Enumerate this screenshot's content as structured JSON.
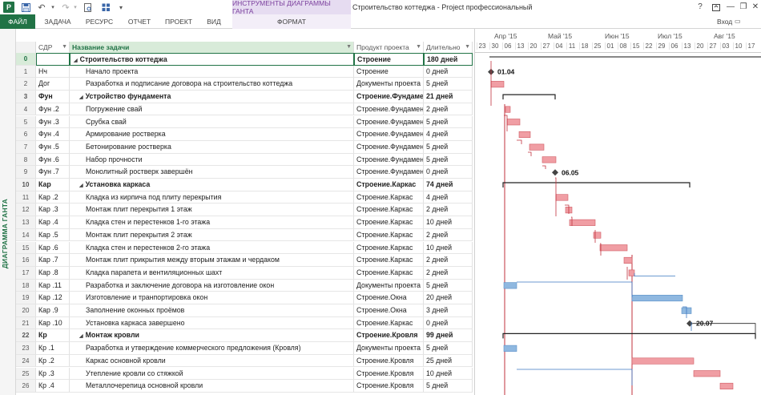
{
  "titlebar": {
    "app_icon": "P",
    "qa_icons": [
      "save-icon",
      "undo-icon",
      "redo-icon",
      "print-preview-icon",
      "customize-icon",
      "touch-mode-icon"
    ],
    "contextual_title": "ИНСТРУМЕНТЫ ДИАГРАММЫ ГАНТА",
    "document_title": "Строительство коттеджа - Project профессиональный",
    "help": "?",
    "minimize": "—",
    "restore": "❐",
    "close": "✕"
  },
  "ribbon": {
    "tabs": [
      "ФАЙЛ",
      "ЗАДАЧА",
      "РЕСУРС",
      "ОТЧЕТ",
      "ПРОЕКТ",
      "ВИД"
    ],
    "context_tab": "ФОРМАТ",
    "signin": "Вход"
  },
  "sidebar": {
    "view_label": "ДИАГРАММА ГАНТА"
  },
  "grid": {
    "headers": {
      "sdr": "СДР",
      "name": "Название задачи",
      "product": "Продукт проекта",
      "duration": "Длительно"
    },
    "rows": [
      {
        "id": "0",
        "sdr": "",
        "name": "Строительство коттеджа",
        "product": "Строение",
        "duration": "180 дней",
        "level": 0,
        "summary": true
      },
      {
        "id": "1",
        "sdr": "Нч",
        "name": "Начало проекта",
        "product": "Строение",
        "duration": "0 дней",
        "level": 2,
        "summary": false
      },
      {
        "id": "2",
        "sdr": "Дог",
        "name": "Разработка и подписание договора на строительство коттеджа",
        "product": "Документы проекта",
        "duration": "5 дней",
        "level": 2,
        "summary": false
      },
      {
        "id": "3",
        "sdr": "Фун",
        "name": "Устройство фундамента",
        "product": "Строение.Фундамент",
        "duration": "21 дней",
        "level": 1,
        "summary": true
      },
      {
        "id": "4",
        "sdr": "Фун .2",
        "name": "Погружение свай",
        "product": "Строение.Фундамент",
        "duration": "2 дней",
        "level": 2,
        "summary": false
      },
      {
        "id": "5",
        "sdr": "Фун .3",
        "name": "Срубка свай",
        "product": "Строение.Фундамент",
        "duration": "5 дней",
        "level": 2,
        "summary": false
      },
      {
        "id": "6",
        "sdr": "Фун .4",
        "name": "Армирование ростверка",
        "product": "Строение.Фундамент",
        "duration": "4 дней",
        "level": 2,
        "summary": false
      },
      {
        "id": "7",
        "sdr": "Фун .5",
        "name": "Бетонирование ростверка",
        "product": "Строение.Фундамент",
        "duration": "5 дней",
        "level": 2,
        "summary": false
      },
      {
        "id": "8",
        "sdr": "Фун .6",
        "name": "Набор прочности",
        "product": "Строение.Фундамент",
        "duration": "5 дней",
        "level": 2,
        "summary": false
      },
      {
        "id": "9",
        "sdr": "Фун .7",
        "name": "Монолитный ростверк завершён",
        "product": "Строение.Фундамент",
        "duration": "0 дней",
        "level": 2,
        "summary": false
      },
      {
        "id": "10",
        "sdr": "Кар",
        "name": "Установка каркаса",
        "product": "Строение.Каркас",
        "duration": "74 дней",
        "level": 1,
        "summary": true
      },
      {
        "id": "11",
        "sdr": "Кар .2",
        "name": "Кладка из кирпича под плиту перекрытия",
        "product": "Строение.Каркас",
        "duration": "4 дней",
        "level": 2,
        "summary": false
      },
      {
        "id": "12",
        "sdr": "Кар .3",
        "name": "Монтаж плит перекрытия 1 этаж",
        "product": "Строение.Каркас",
        "duration": "2 дней",
        "level": 2,
        "summary": false
      },
      {
        "id": "13",
        "sdr": "Кар .4",
        "name": "Кладка стен и перестенков 1-го этажа",
        "product": "Строение.Каркас",
        "duration": "10 дней",
        "level": 2,
        "summary": false
      },
      {
        "id": "14",
        "sdr": "Кар .5",
        "name": "Монтаж плит перекрытия 2 этаж",
        "product": "Строение.Каркас",
        "duration": "2 дней",
        "level": 2,
        "summary": false
      },
      {
        "id": "15",
        "sdr": "Кар .6",
        "name": "Кладка стен и перестенков 2-го этажа",
        "product": "Строение.Каркас",
        "duration": "10 дней",
        "level": 2,
        "summary": false
      },
      {
        "id": "16",
        "sdr": "Кар .7",
        "name": "Монтаж плит прикрытия между вторым этажам и чердаком",
        "product": "Строение.Каркас",
        "duration": "2 дней",
        "level": 2,
        "summary": false
      },
      {
        "id": "17",
        "sdr": "Кар .8",
        "name": "Кладка парапета и вентиляционных шахт",
        "product": "Строение.Каркас",
        "duration": "2 дней",
        "level": 2,
        "summary": false
      },
      {
        "id": "18",
        "sdr": "Кар .11",
        "name": "Разработка и заключение договора на изготовление окон",
        "product": "Документы проекта",
        "duration": "5 дней",
        "level": 2,
        "summary": false
      },
      {
        "id": "19",
        "sdr": "Кар .12",
        "name": "Изготовление и транпортировка окон",
        "product": "Строение.Окна",
        "duration": "20 дней",
        "level": 2,
        "summary": false
      },
      {
        "id": "20",
        "sdr": "Кар .9",
        "name": "Заполнение оконных проёмов",
        "product": "Строение.Окна",
        "duration": "3 дней",
        "level": 2,
        "summary": false
      },
      {
        "id": "21",
        "sdr": "Кар .10",
        "name": "Установка каркаса завершено",
        "product": "Строение.Каркас",
        "duration": "0 дней",
        "level": 2,
        "summary": false
      },
      {
        "id": "22",
        "sdr": "Кр",
        "name": "Монтаж кровли",
        "product": "Строение.Кровля",
        "duration": "99 дней",
        "level": 1,
        "summary": true
      },
      {
        "id": "23",
        "sdr": "Кр .1",
        "name": "Разработка и утверждение коммерческого предложения (Кровля)",
        "product": "Документы проекта",
        "duration": "5 дней",
        "level": 2,
        "summary": false
      },
      {
        "id": "24",
        "sdr": "Кр .2",
        "name": "Каркас основной кровли",
        "product": "Строение.Кровля",
        "duration": "25 дней",
        "level": 2,
        "summary": false
      },
      {
        "id": "25",
        "sdr": "Кр .3",
        "name": "Утепление кровли со стяжкой",
        "product": "Строение.Кровля",
        "duration": "10 дней",
        "level": 2,
        "summary": false
      },
      {
        "id": "26",
        "sdr": "Кр .4",
        "name": "Металлочерепица основной кровли",
        "product": "Строение.Кровля",
        "duration": "5 дней",
        "level": 2,
        "summary": false
      }
    ]
  },
  "gantt": {
    "months": [
      "Апр '15",
      "Май '15",
      "Июн '15",
      "Июл '15",
      "Авг '15"
    ],
    "weeks": [
      "23",
      "30",
      "06",
      "13",
      "20",
      "27",
      "04",
      "11",
      "18",
      "25",
      "01",
      "08",
      "15",
      "22",
      "29",
      "06",
      "13",
      "20",
      "27",
      "03",
      "10",
      "17"
    ],
    "milestone_labels": [
      "01.04",
      "06.05",
      "20.07"
    ],
    "colors": {
      "critical": "#f09ea4",
      "critical_stroke": "#d05a63",
      "normal": "#8fb8e0",
      "normal_stroke": "#5b8fc7",
      "summary": "#222222",
      "link_red": "#c0323e",
      "link_blue": "#3c78c2"
    }
  }
}
